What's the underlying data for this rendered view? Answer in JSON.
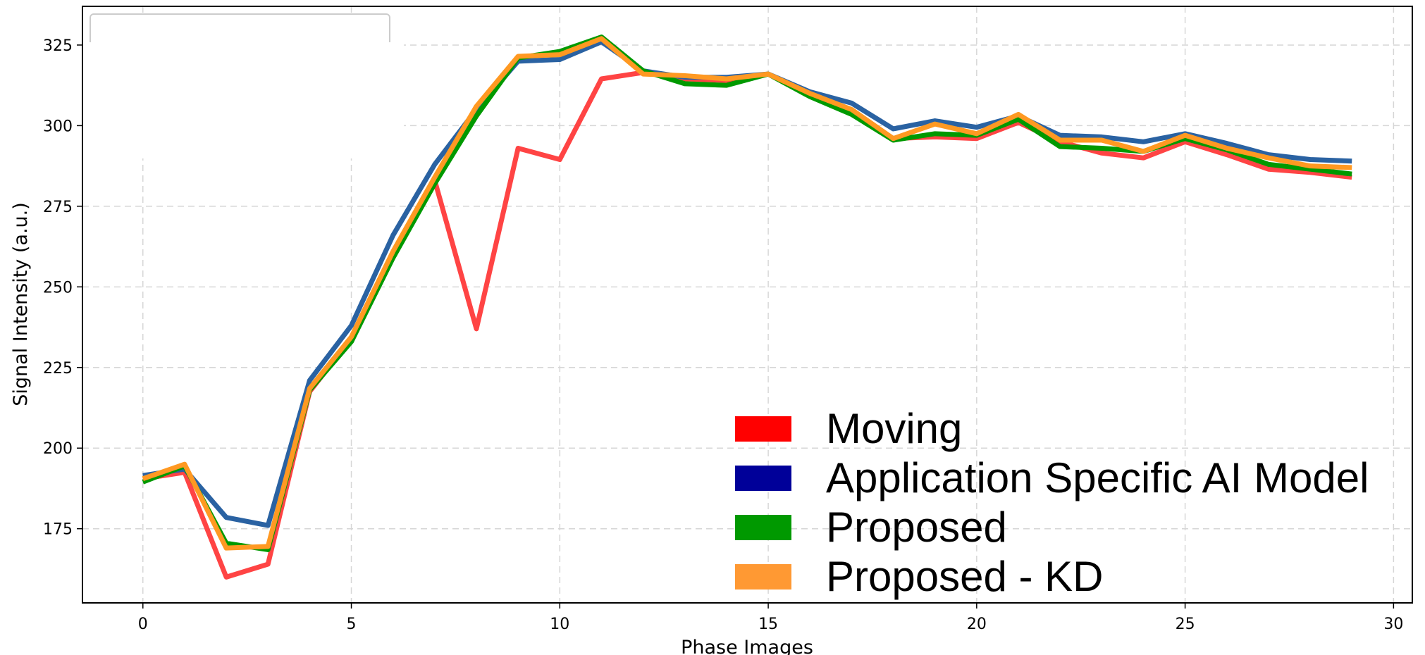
{
  "chart_data": {
    "type": "line",
    "xlabel": "Phase Images",
    "ylabel": "Signal Intensity (a.u.)",
    "xlim": [
      -1.45,
      30.45
    ],
    "ylim": [
      152,
      337
    ],
    "xticks": [
      0,
      5,
      10,
      15,
      20,
      25,
      30
    ],
    "yticks": [
      175,
      200,
      225,
      250,
      275,
      300,
      325
    ],
    "grid": true,
    "legend_position": "bottom-right",
    "x": [
      0,
      1,
      2,
      3,
      4,
      5,
      6,
      7,
      8,
      9,
      10,
      11,
      12,
      13,
      14,
      15,
      16,
      17,
      18,
      19,
      20,
      21,
      22,
      23,
      24,
      25,
      26,
      27,
      28,
      29
    ],
    "series": [
      {
        "name": "Moving",
        "color": "#ff4444",
        "legend_color": "#ff0000",
        "values": [
          190.5,
          192.5,
          160,
          164,
          217.5,
          234,
          260,
          283,
          237,
          293,
          289.5,
          314.5,
          316.5,
          314.5,
          314,
          316,
          310,
          304,
          296,
          296.5,
          296,
          301,
          295,
          291.5,
          290,
          295,
          291,
          286.5,
          285.5,
          284
        ]
      },
      {
        "name": "Application Specific AI Model",
        "color": "#2a62a2",
        "legend_color": "#000099",
        "values": [
          191.5,
          193.5,
          178.5,
          176,
          221,
          238,
          266,
          288,
          305,
          320,
          320.5,
          326,
          317,
          315,
          315,
          316,
          310.5,
          307,
          299,
          301.5,
          299.5,
          303,
          297,
          296.5,
          295,
          297.5,
          294.5,
          291,
          289.5,
          289
        ]
      },
      {
        "name": "Proposed",
        "color": "#009900",
        "legend_color": "#009900",
        "values": [
          189.5,
          194.5,
          170.5,
          168.5,
          218,
          233,
          259,
          282,
          303,
          321,
          323,
          327.5,
          317,
          313,
          312.5,
          316,
          309,
          303.5,
          295.5,
          297.5,
          297,
          302,
          293.5,
          293,
          292,
          296,
          292.5,
          288,
          286.5,
          285
        ]
      },
      {
        "name": "Proposed - KD",
        "color": "#ff9922",
        "legend_color": "#ff9933",
        "values": [
          190.5,
          195,
          169,
          169.5,
          218.5,
          234.5,
          261,
          284,
          306,
          321.5,
          322,
          327,
          316,
          315.5,
          314.5,
          316,
          310,
          305,
          296,
          300.5,
          297.5,
          303.5,
          295.5,
          295.5,
          292,
          297,
          293,
          290,
          287.5,
          287
        ]
      }
    ]
  }
}
